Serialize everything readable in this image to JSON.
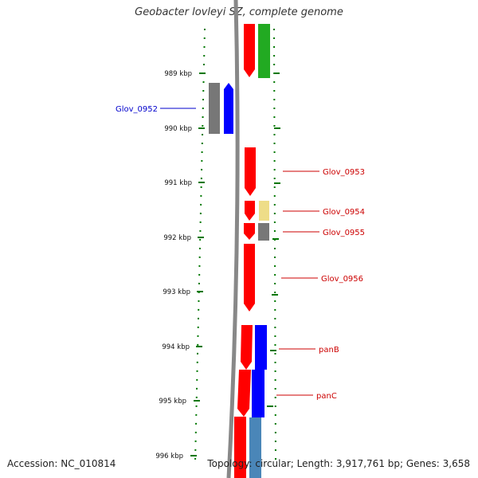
{
  "title": "Geobacter lovleyi SZ, complete genome",
  "accession": "Accession: NC_010814",
  "stats": "Topology: circular; Length: 3,917,761 bp; Genes: 3,658",
  "ruler": [
    {
      "label": "989 kbp",
      "kbp": 989
    },
    {
      "label": "990 kbp",
      "kbp": 990
    },
    {
      "label": "991 kbp",
      "kbp": 991
    },
    {
      "label": "992 kbp",
      "kbp": 992
    },
    {
      "label": "993 kbp",
      "kbp": 993
    },
    {
      "label": "994 kbp",
      "kbp": 994
    },
    {
      "label": "995 kbp",
      "kbp": 995
    },
    {
      "label": "996 kbp",
      "kbp": 996
    }
  ],
  "gene_labels": [
    {
      "text": "Glov_0952",
      "color": "#0000cc",
      "side": "left"
    },
    {
      "text": "Glov_0953",
      "color": "#cc0000",
      "side": "right"
    },
    {
      "text": "Glov_0954",
      "color": "#cc0000",
      "side": "right"
    },
    {
      "text": "Glov_0955",
      "color": "#cc0000",
      "side": "right"
    },
    {
      "text": "Glov_0956",
      "color": "#cc0000",
      "side": "right"
    },
    {
      "text": "panB",
      "color": "#cc0000",
      "side": "right"
    },
    {
      "text": "panC",
      "color": "#cc0000",
      "side": "right"
    }
  ],
  "colors": {
    "backbone": "#888888",
    "tick": "#007700",
    "red": "#ff0000",
    "green": "#22aa22",
    "blue": "#0000ff",
    "gray": "#777777",
    "yellow": "#eedd88",
    "steelblue": "#4a86b8"
  }
}
